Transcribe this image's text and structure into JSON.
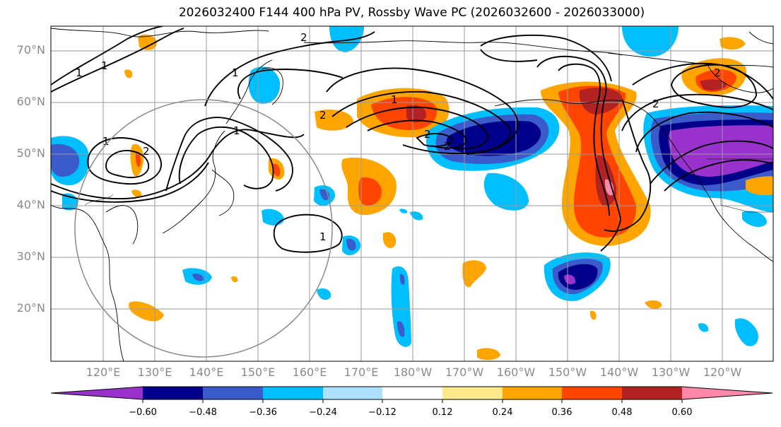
{
  "title": "2026032400 F144 400 hPa PV, Rossby Wave PC (2026032600 - 2026033000)",
  "lat_labels": [
    "70°N",
    "60°N",
    "50°N",
    "40°N",
    "30°N",
    "20°N"
  ],
  "lon_labels": [
    "120°E",
    "130°E",
    "140°E",
    "150°E",
    "160°E",
    "170°E",
    "180°W",
    "170°W",
    "160°W",
    "150°W",
    "140°W",
    "130°W",
    "120°W"
  ],
  "contour_labels": [
    "1",
    "1",
    "2",
    "1",
    "1",
    "2",
    "1",
    "1",
    "1",
    "2",
    "2",
    "2",
    "2",
    "2"
  ],
  "colorbar": {
    "tick_labels": [
      "−0.60",
      "−0.48",
      "−0.36",
      "−0.24",
      "−0.12",
      "0.12",
      "0.24",
      "0.36",
      "0.48",
      "0.60"
    ],
    "colors": [
      "#9932CC",
      "#00008B",
      "#3A5BC9",
      "#00BFFF",
      "#B0E0FF",
      "#FFFFFF",
      "#FFE98A",
      "#FFA500",
      "#FF4500",
      "#B22222",
      "#FF88AA"
    ]
  }
}
